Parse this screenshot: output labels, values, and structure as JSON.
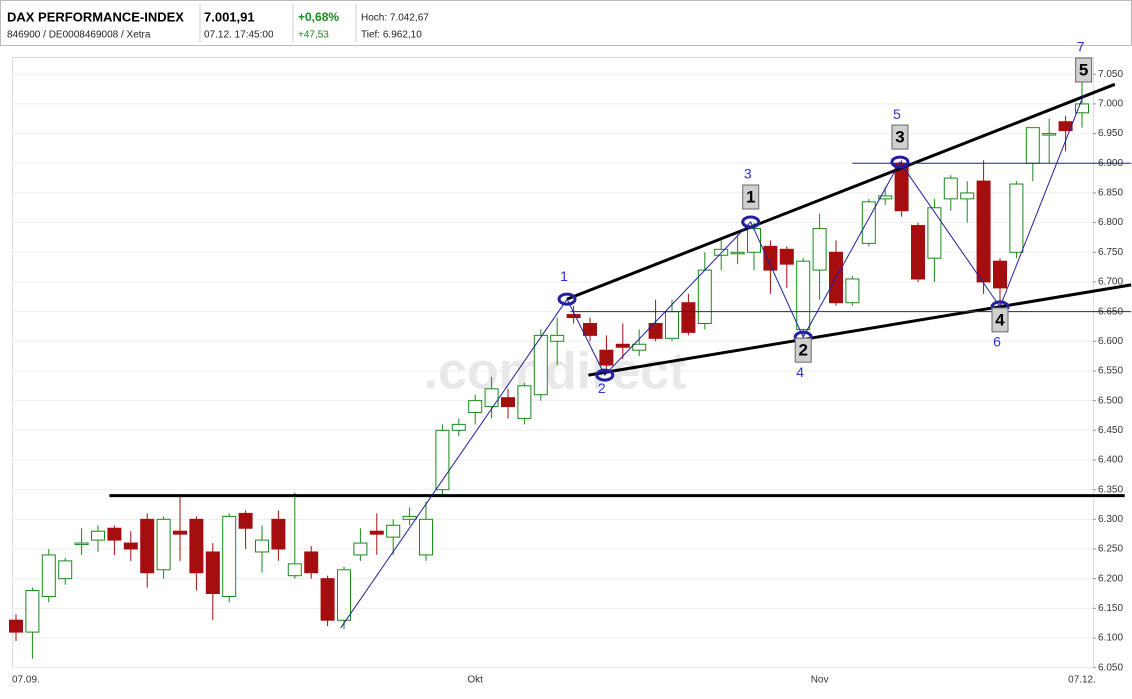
{
  "header": {
    "title": "DAX PERFORMANCE-INDEX",
    "subtitle": "846900 / DE0008469008 / Xetra",
    "price": "7.001,91",
    "time": "07.12. 17:45:00",
    "change_pct": "+0,68%",
    "change_abs": "+47,53",
    "high": "Hoch: 7.042,67",
    "low": "Tief: 6.962,10"
  },
  "chart_data": {
    "type": "candlestick",
    "watermark": ".comdirect",
    "categories": [
      "07.09.",
      null,
      null,
      null,
      null,
      null,
      null,
      null,
      null,
      null,
      null,
      null,
      null,
      null,
      null,
      null,
      null,
      null,
      null,
      null,
      null,
      null,
      null,
      null,
      null,
      null,
      null,
      null,
      "Okt",
      null,
      null,
      null,
      null,
      null,
      null,
      null,
      null,
      null,
      null,
      null,
      null,
      null,
      null,
      null,
      null,
      null,
      null,
      null,
      null,
      "Nov",
      null,
      null,
      null,
      null,
      null,
      null,
      null,
      null,
      null,
      null,
      null,
      null,
      null,
      null,
      null,
      "07.12."
    ],
    "open": [
      6130,
      6110,
      6170,
      6200,
      6260,
      6265,
      6285,
      6260,
      6300,
      6215,
      6280,
      6300,
      6245,
      6170,
      6310,
      6245,
      6300,
      6205,
      6245,
      6200,
      6130,
      6240,
      6280,
      6270,
      6300,
      6240,
      6350,
      6450,
      6480,
      6490,
      6505,
      6470,
      6510,
      6600,
      6645,
      6630,
      6585,
      6595,
      6585,
      6630,
      6605,
      6665,
      6630,
      6745,
      6750,
      6750,
      6760,
      6755,
      6620,
      6720,
      6750,
      6665,
      6765,
      6840,
      6900,
      6795,
      6740,
      6840,
      6840,
      6870,
      6735,
      6750,
      6900,
      6950,
      6970,
      6985
    ],
    "high": [
      6140,
      6185,
      6250,
      6235,
      6285,
      6290,
      6290,
      6280,
      6310,
      6305,
      6340,
      6305,
      6260,
      6310,
      6315,
      6290,
      6315,
      6345,
      6255,
      6205,
      6220,
      6285,
      6310,
      6300,
      6320,
      6330,
      6460,
      6470,
      6510,
      6540,
      6520,
      6530,
      6620,
      6640,
      6660,
      6640,
      6610,
      6630,
      6620,
      6670,
      6670,
      6680,
      6750,
      6770,
      6780,
      6800,
      6770,
      6760,
      6740,
      6815,
      6770,
      6710,
      6840,
      6860,
      6905,
      6800,
      6840,
      6880,
      6870,
      6905,
      6740,
      6870,
      6960,
      6975,
      6980,
      7040
    ],
    "low": [
      6095,
      6065,
      6160,
      6190,
      6240,
      6245,
      6240,
      6230,
      6185,
      6200,
      6230,
      6180,
      6130,
      6160,
      6250,
      6210,
      6230,
      6200,
      6200,
      6120,
      6115,
      6230,
      6240,
      6240,
      6290,
      6230,
      6340,
      6440,
      6460,
      6470,
      6470,
      6460,
      6500,
      6560,
      6630,
      6600,
      6545,
      6570,
      6575,
      6600,
      6600,
      6610,
      6620,
      6720,
      6730,
      6720,
      6680,
      6690,
      6610,
      6670,
      6660,
      6660,
      6760,
      6830,
      6810,
      6700,
      6700,
      6820,
      6800,
      6680,
      6660,
      6740,
      6870,
      6900,
      6920,
      6960
    ],
    "close": [
      6110,
      6180,
      6240,
      6230,
      6260,
      6280,
      6265,
      6250,
      6210,
      6300,
      6275,
      6210,
      6175,
      6305,
      6285,
      6265,
      6250,
      6225,
      6210,
      6130,
      6215,
      6260,
      6275,
      6290,
      6305,
      6300,
      6450,
      6460,
      6500,
      6520,
      6490,
      6525,
      6610,
      6610,
      6640,
      6610,
      6560,
      6590,
      6595,
      6605,
      6650,
      6615,
      6720,
      6755,
      6750,
      6790,
      6720,
      6730,
      6735,
      6790,
      6665,
      6705,
      6835,
      6845,
      6820,
      6705,
      6825,
      6875,
      6850,
      6700,
      6690,
      6865,
      6960,
      6950,
      6955,
      7000
    ],
    "up_color": "#1a8a1a",
    "down_color": "#a50e0e",
    "ylim": [
      6036,
      7074
    ],
    "yticks": [
      {
        "value": 6050,
        "label": "6.050"
      },
      {
        "value": 6100,
        "label": "6.100"
      },
      {
        "value": 6150,
        "label": "6.150"
      },
      {
        "value": 6200,
        "label": "6.200"
      },
      {
        "value": 6250,
        "label": "6.250"
      },
      {
        "value": 6300,
        "label": "6.300"
      },
      {
        "value": 6350,
        "label": "6.350"
      },
      {
        "value": 6400,
        "label": "6.400"
      },
      {
        "value": 6450,
        "label": "6.450"
      },
      {
        "value": 6500,
        "label": "6.500"
      },
      {
        "value": 6550,
        "label": "6.550"
      },
      {
        "value": 6600,
        "label": "6.600"
      },
      {
        "value": 6650,
        "label": "6.650"
      },
      {
        "value": 6700,
        "label": "6.700"
      },
      {
        "value": 6750,
        "label": "6.750"
      },
      {
        "value": 6800,
        "label": "6.800"
      },
      {
        "value": 6850,
        "label": "6.850"
      },
      {
        "value": 6900,
        "label": "6.900"
      },
      {
        "value": 6950,
        "label": "6.950"
      },
      {
        "value": 7000,
        "label": "7.000"
      },
      {
        "value": 7050,
        "label": "7.050"
      }
    ],
    "grid": true,
    "lines": [
      {
        "x": [
          5.7,
          67.6
        ],
        "y": [
          6340,
          6340
        ],
        "color": "#000000",
        "width": 3
      },
      {
        "x": [
          33.6,
          67
        ],
        "y": [
          6671,
          7033
        ],
        "color": "#000000",
        "width": 3
      },
      {
        "x": [
          34.9,
          68
        ],
        "y": [
          6543,
          6695
        ],
        "color": "#000000",
        "width": 3
      },
      {
        "x": [
          33.8,
          68
        ],
        "y": [
          6650,
          6650
        ],
        "color": "#2020a0",
        "width": 1
      },
      {
        "x": [
          51,
          68
        ],
        "y": [
          6900,
          6900
        ],
        "color": "#2020a0",
        "width": 1
      }
    ],
    "wave": {
      "x": [
        19.8,
        33.6,
        35.9,
        44.8,
        48.0,
        53.9,
        60.0,
        65.1
      ],
      "y": [
        6117,
        6671,
        6543,
        6801,
        6607,
        6902,
        6658,
        7015
      ],
      "labels": [
        null,
        "1",
        "2",
        "3",
        "4",
        "5",
        "6",
        "7"
      ],
      "box_labels": [
        null,
        null,
        null,
        "1",
        "2",
        "3",
        "4",
        "5"
      ],
      "color": "#2020a0"
    }
  }
}
